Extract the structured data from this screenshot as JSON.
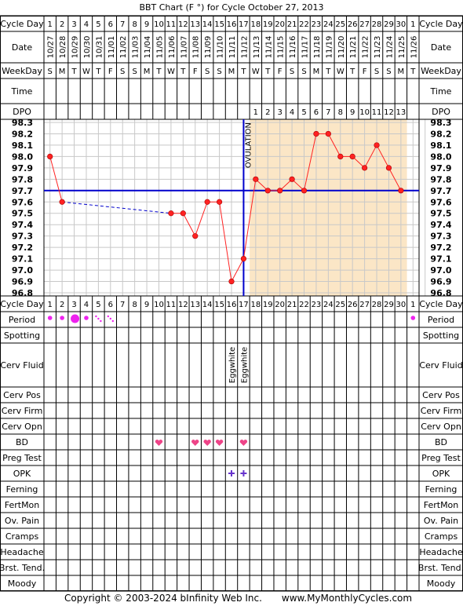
{
  "title": "BBT Chart (F °) for Cycle October 27, 2013",
  "footer": {
    "copyright": "Copyright © 2003-2024 bInfinity Web Inc.",
    "site": "www.MyMonthlyCycles.com"
  },
  "row_labels": {
    "cycle_day": "Cycle Day",
    "date": "Date",
    "weekday": "WeekDay",
    "time": "Time",
    "dpo": "DPO"
  },
  "bottom_row_labels": [
    "Cycle Day",
    "Period",
    "Spotting",
    "Cerv Fluid",
    "Cerv Pos",
    "Cerv Firm",
    "Cerv Opn",
    "BD",
    "Preg Test",
    "OPK",
    "Ferning",
    "FertMon",
    "Ov. Pain",
    "Cramps",
    "Headache",
    "Brst. Tend.",
    "Moody"
  ],
  "cycle_days": [
    "1",
    "2",
    "3",
    "4",
    "5",
    "6",
    "7",
    "8",
    "9",
    "10",
    "11",
    "12",
    "13",
    "14",
    "15",
    "16",
    "17",
    "18",
    "19",
    "20",
    "21",
    "22",
    "23",
    "24",
    "25",
    "26",
    "27",
    "28",
    "29",
    "30",
    "1"
  ],
  "dates": [
    "10/27",
    "10/28",
    "10/29",
    "10/30",
    "10/31",
    "11/01",
    "11/02",
    "11/03",
    "11/04",
    "11/05",
    "11/06",
    "11/07",
    "11/08",
    "11/09",
    "11/10",
    "11/11",
    "11/12",
    "11/13",
    "11/14",
    "11/15",
    "11/16",
    "11/17",
    "11/18",
    "11/19",
    "11/20",
    "11/21",
    "11/22",
    "11/23",
    "11/24",
    "11/25",
    "11/26"
  ],
  "weekdays": [
    "S",
    "M",
    "T",
    "W",
    "T",
    "F",
    "S",
    "S",
    "M",
    "T",
    "W",
    "T",
    "F",
    "S",
    "S",
    "M",
    "T",
    "W",
    "T",
    "F",
    "S",
    "S",
    "M",
    "T",
    "W",
    "T",
    "F",
    "S",
    "S",
    "M",
    "T"
  ],
  "dpo": [
    "",
    "",
    "",
    "",
    "",
    "",
    "",
    "",
    "",
    "",
    "",
    "",
    "",
    "",
    "",
    "",
    "",
    "1",
    "2",
    "3",
    "4",
    "5",
    "6",
    "7",
    "8",
    "9",
    "10",
    "11",
    "12",
    "13",
    ""
  ],
  "temp_labels": [
    "98.3",
    "98.2",
    "98.1",
    "98.0",
    "97.9",
    "97.8",
    "97.7",
    "97.6",
    "97.5",
    "97.4",
    "97.3",
    "97.2",
    "97.1",
    "97.0",
    "96.9",
    "96.8"
  ],
  "ovulation_label": "OVULATION",
  "cerv_fluid": [
    {
      "day": 16,
      "text": "Eggwhite"
    },
    {
      "day": 17,
      "text": "Eggwhite"
    }
  ],
  "period": [
    {
      "day": 1,
      "level": "light"
    },
    {
      "day": 2,
      "level": "light"
    },
    {
      "day": 3,
      "level": "heavy"
    },
    {
      "day": 4,
      "level": "light"
    },
    {
      "day": 5,
      "level": "spotting"
    },
    {
      "day": 6,
      "level": "spotting"
    },
    {
      "day": 31,
      "level": "light"
    }
  ],
  "bd_days": [
    10,
    13,
    14,
    15,
    17
  ],
  "opk_days": [
    16,
    17
  ],
  "colors": {
    "line": "#ff2222",
    "coverline": "#0000cc",
    "luteal_fill": "#fbe6c6",
    "period": "#ee22ee",
    "bd": "#ee4488",
    "opk": "#6633cc",
    "grid": "#c8c8c8",
    "border": "#000000"
  },
  "chart_data": {
    "type": "line",
    "title": "BBT Chart (F °) for Cycle October 27, 2013",
    "x": [
      "1",
      "2",
      "3",
      "4",
      "5",
      "6",
      "7",
      "8",
      "9",
      "10",
      "11",
      "12",
      "13",
      "14",
      "15",
      "16",
      "17",
      "18",
      "19",
      "20",
      "21",
      "22",
      "23",
      "24",
      "25",
      "26",
      "27",
      "28",
      "29",
      "30",
      "1"
    ],
    "series": [
      {
        "values": [
          98.0,
          97.6,
          null,
          null,
          null,
          null,
          null,
          null,
          null,
          null,
          97.5,
          97.5,
          97.3,
          97.6,
          97.6,
          96.9,
          97.1,
          97.8,
          97.7,
          97.7,
          97.8,
          97.7,
          98.2,
          98.2,
          98.0,
          98.0,
          97.9,
          98.1,
          97.9,
          97.7,
          null
        ]
      }
    ],
    "coverline": 97.7,
    "ovulation_day": 17,
    "ylim": [
      96.8,
      98.3
    ],
    "grid": true
  }
}
